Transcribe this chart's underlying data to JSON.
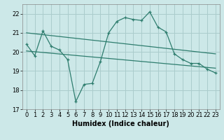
{
  "xlabel": "Humidex (Indice chaleur)",
  "background_color": "#cce8e8",
  "grid_color": "#aacccc",
  "line_color": "#2e7d6e",
  "ylim": [
    17,
    22.5
  ],
  "xlim": [
    -0.5,
    23.5
  ],
  "yticks": [
    17,
    18,
    19,
    20,
    21,
    22
  ],
  "xticks": [
    0,
    1,
    2,
    3,
    4,
    5,
    6,
    7,
    8,
    9,
    10,
    11,
    12,
    13,
    14,
    15,
    16,
    17,
    18,
    19,
    20,
    21,
    22,
    23
  ],
  "series1_x": [
    0,
    1,
    2,
    3,
    4,
    5,
    6,
    7,
    8,
    9,
    10,
    11,
    12,
    13,
    14,
    15,
    16,
    17,
    18,
    19,
    20,
    21,
    22,
    23
  ],
  "series1_y": [
    20.4,
    19.8,
    21.1,
    20.3,
    20.1,
    19.6,
    17.4,
    18.3,
    18.35,
    19.5,
    21.0,
    21.6,
    21.8,
    21.7,
    21.65,
    22.1,
    21.3,
    21.05,
    19.9,
    19.6,
    19.4,
    19.4,
    19.1,
    18.9
  ],
  "series2_x": [
    0,
    23
  ],
  "series2_y": [
    21.0,
    19.9
  ],
  "series3_x": [
    0,
    23
  ],
  "series3_y": [
    20.05,
    19.15
  ],
  "xlabel_fontsize": 7,
  "tick_fontsize": 6
}
